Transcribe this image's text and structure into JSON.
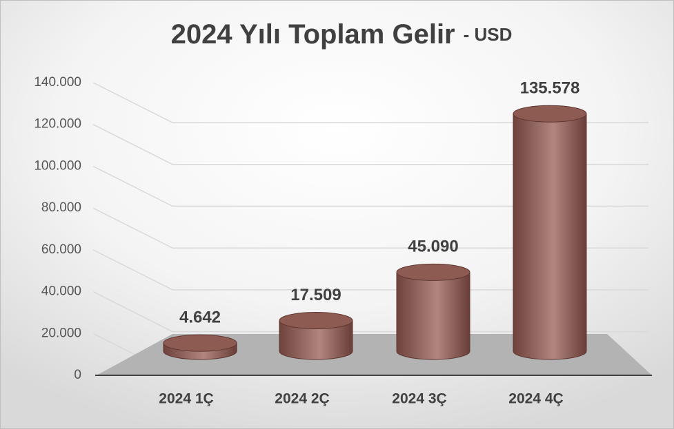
{
  "chart_data": {
    "type": "cylinder",
    "title": "2024 Yılı Toplam Gelir",
    "subtitle": "- USD",
    "categories": [
      "2024 1Ç",
      "2024 2Ç",
      "2024 3Ç",
      "2024 4Ç"
    ],
    "values": [
      4642,
      17509,
      45090,
      135578
    ],
    "value_labels": [
      "4.642",
      "17.509",
      "45.090",
      "135.578"
    ],
    "color": "#8e5b53",
    "ylim": [
      0,
      140000
    ],
    "yticks": [
      0,
      {
        "value": 20000,
        "label": "20.000"
      },
      {
        "value": 40000,
        "label": "40.000"
      },
      {
        "value": 60000,
        "label": "60.000"
      },
      {
        "value": 80000,
        "label": "80.000"
      },
      {
        "value": 100000,
        "label": "100.000"
      },
      {
        "value": 120000,
        "label": "120.000"
      },
      {
        "value": 140000,
        "label": "140.000"
      }
    ],
    "grid": true
  }
}
